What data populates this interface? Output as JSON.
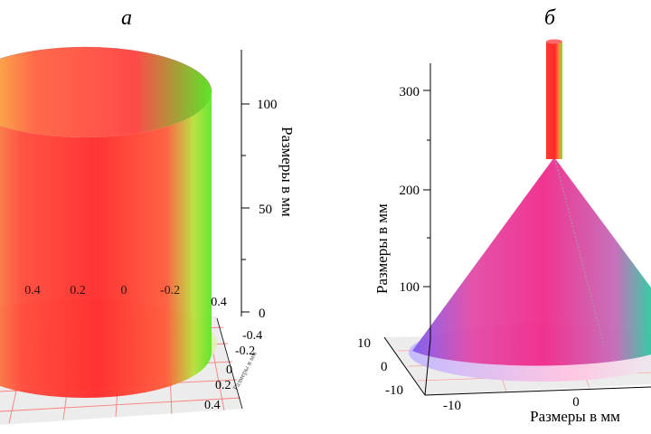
{
  "panels": [
    {
      "label": "а",
      "axis_title": "Размеры в мм",
      "vertical_ticks": [
        "0",
        "50",
        "100"
      ],
      "x_ticks": [
        "0.4",
        "0.2",
        "0",
        "-0.2",
        "0.4"
      ],
      "y_ticks": [
        "-0.4",
        "-0.2",
        "0",
        "0.2",
        "0.4"
      ],
      "minor_axis_label": "Размеры в мм",
      "shape": "cylinder",
      "colors": {
        "primary": "#ff2a2a",
        "secondary": "#66e626",
        "tertiary": "#f2e84a"
      }
    },
    {
      "label": "б",
      "axis_title": "Размеры в мм",
      "vertical_ticks": [
        "100",
        "200",
        "300"
      ],
      "x_axis_title": "Размеры в мм",
      "x_ticks": [
        "-10",
        "0"
      ],
      "y_ticks": [
        "10",
        "0",
        "-10"
      ],
      "shape": "cone",
      "colors": {
        "primary": "#f02a8a",
        "secondary": "#6a5ae6",
        "tertiary": "#2ec8a0"
      }
    }
  ]
}
